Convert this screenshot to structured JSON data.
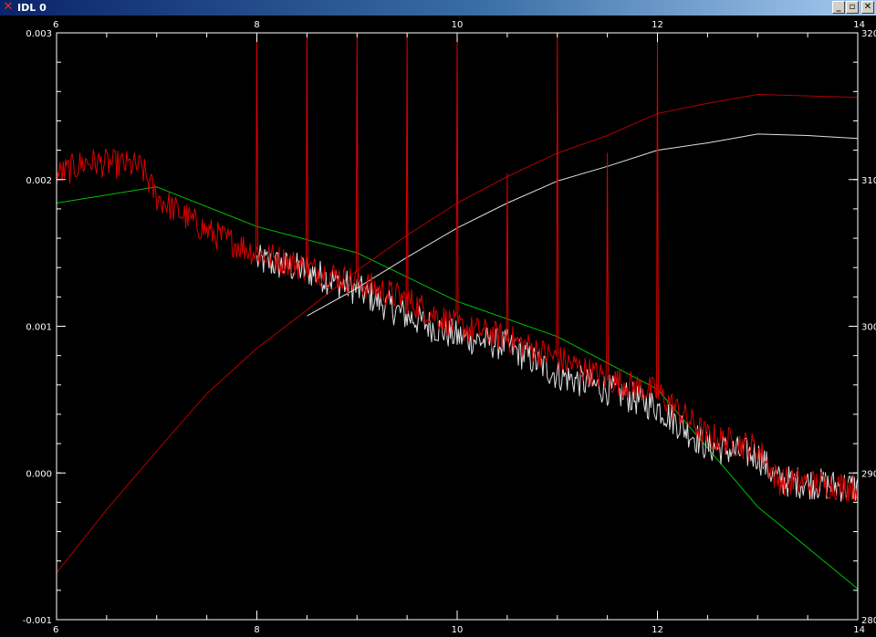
{
  "window": {
    "title": "IDL 0",
    "app_icon": "x-icon",
    "controls": [
      "minimize-icon",
      "maximize-icon",
      "close-icon"
    ]
  },
  "chart_data": {
    "type": "line",
    "background": "#000000",
    "grid": false,
    "x_axis": {
      "range": [
        6,
        14
      ],
      "ticks": [
        "6",
        "8",
        "10",
        "12",
        "14"
      ]
    },
    "y_left": {
      "range": [
        -0.001,
        0.003
      ],
      "ticks": [
        "0.003",
        "0.002",
        "0.001",
        "0.000",
        "-0.001"
      ]
    },
    "y_right": {
      "range": [
        280,
        320
      ],
      "ticks": [
        "320",
        "310",
        "300",
        "290",
        "280"
      ]
    },
    "series": [
      {
        "color": "#00c000",
        "axis": "left",
        "style": "line",
        "x": [
          6.0,
          7.0,
          8.0,
          9.0,
          10.0,
          11.0,
          12.0,
          13.0,
          14.0
        ],
        "y": [
          0.00184,
          0.00195,
          0.00168,
          0.0015,
          0.00117,
          0.00093,
          0.00057,
          -0.00023,
          -0.00079
        ]
      },
      {
        "color": "#b00000",
        "axis": "right",
        "style": "line",
        "x": [
          6.0,
          6.5,
          7.0,
          7.5,
          8.0,
          8.5,
          9.0,
          9.5,
          10.0,
          10.5,
          11.0,
          11.5,
          12.0,
          12.5,
          13.0,
          14.0
        ],
        "y": [
          283.2,
          287.5,
          291.5,
          295.4,
          298.5,
          301.1,
          303.8,
          306.2,
          308.4,
          310.2,
          311.8,
          313.0,
          314.5,
          315.2,
          315.8,
          315.6
        ]
      },
      {
        "color": "#e0e0e0",
        "axis": "right",
        "style": "line",
        "x": [
          8.5,
          9.0,
          9.5,
          10.0,
          10.5,
          11.0,
          11.5,
          12.0,
          12.5,
          13.0,
          13.5,
          14.0
        ],
        "y": [
          300.7,
          302.6,
          304.7,
          306.7,
          308.4,
          309.9,
          310.9,
          312.0,
          312.5,
          313.1,
          313.0,
          312.8
        ]
      },
      {
        "color": "#e0e0e0",
        "axis": "left",
        "style": "noisy",
        "x": [
          8.0,
          8.5,
          9.0,
          9.5,
          10.0,
          10.5,
          11.0,
          11.5,
          12.0,
          12.5,
          13.0,
          13.2,
          14.0
        ],
        "y": [
          0.00145,
          0.00138,
          0.00125,
          0.00107,
          0.00093,
          0.00087,
          0.00067,
          0.00057,
          0.00045,
          0.00018,
          0.00012,
          -5e-05,
          -0.0001
        ],
        "noise_amplitude": 0.00011
      },
      {
        "color": "#dd0000",
        "axis": "left",
        "style": "noisy",
        "x": [
          6.0,
          6.3,
          6.7,
          6.85,
          7.0,
          7.5,
          8.0,
          8.5,
          9.0,
          9.5,
          10.0,
          10.5,
          11.0,
          11.5,
          12.0,
          12.5,
          13.0,
          13.2,
          14.0
        ],
        "y": [
          0.00203,
          0.00212,
          0.0021,
          0.00208,
          0.00188,
          0.00165,
          0.0015,
          0.0014,
          0.0013,
          0.00118,
          0.001,
          0.00092,
          0.00078,
          0.00064,
          0.00055,
          0.00025,
          0.00017,
          -5e-05,
          -0.0001
        ],
        "noise_amplitude": 0.0001,
        "spikes": [
          {
            "x": 8.0,
            "y": 0.003
          },
          {
            "x": 8.5,
            "y": 0.003
          },
          {
            "x": 9.0,
            "y": 0.003
          },
          {
            "x": 9.5,
            "y": 0.003
          },
          {
            "x": 10.0,
            "y": 0.003
          },
          {
            "x": 10.5,
            "y": 0.00204
          },
          {
            "x": 11.0,
            "y": 0.003
          },
          {
            "x": 11.5,
            "y": 0.00218
          },
          {
            "x": 12.0,
            "y": 0.003
          }
        ]
      }
    ]
  }
}
